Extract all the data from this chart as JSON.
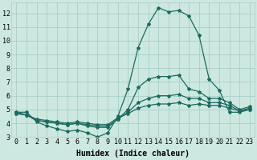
{
  "xlabel": "Humidex (Indice chaleur)",
  "x": [
    0,
    1,
    2,
    3,
    4,
    5,
    6,
    7,
    8,
    9,
    10,
    11,
    12,
    13,
    14,
    15,
    16,
    17,
    18,
    19,
    20,
    21,
    22,
    23
  ],
  "line1": [
    4.8,
    4.8,
    4.1,
    3.8,
    3.6,
    3.4,
    3.5,
    3.3,
    3.0,
    3.3,
    4.5,
    6.5,
    9.5,
    11.2,
    12.4,
    12.1,
    12.2,
    11.8,
    10.4,
    7.2,
    6.4,
    4.8,
    4.8,
    5.0
  ],
  "line2": [
    4.8,
    4.6,
    4.2,
    4.1,
    4.0,
    3.9,
    4.0,
    3.8,
    3.7,
    3.7,
    4.3,
    5.0,
    6.6,
    7.2,
    7.4,
    7.4,
    7.5,
    6.5,
    6.3,
    5.8,
    5.8,
    5.5,
    5.0,
    5.2
  ],
  "line3": [
    4.7,
    4.6,
    4.2,
    4.1,
    4.0,
    3.9,
    4.0,
    3.9,
    3.8,
    3.8,
    4.3,
    4.8,
    5.5,
    5.8,
    6.0,
    6.0,
    6.1,
    5.8,
    5.8,
    5.5,
    5.5,
    5.3,
    4.9,
    5.1
  ],
  "line4": [
    4.7,
    4.6,
    4.3,
    4.2,
    4.1,
    4.0,
    4.1,
    4.0,
    3.9,
    3.9,
    4.4,
    4.7,
    5.1,
    5.3,
    5.4,
    5.4,
    5.5,
    5.3,
    5.4,
    5.3,
    5.3,
    5.1,
    4.9,
    5.0
  ],
  "line_color": "#1a6b60",
  "bg_color": "#cce8e0",
  "grid_color": "#aacfc8",
  "ylim": [
    3,
    12.8
  ],
  "yticks": [
    3,
    4,
    5,
    6,
    7,
    8,
    9,
    10,
    11,
    12
  ],
  "xticks": [
    0,
    1,
    2,
    3,
    4,
    5,
    6,
    7,
    8,
    9,
    10,
    11,
    12,
    13,
    14,
    15,
    16,
    17,
    18,
    19,
    20,
    21,
    22,
    23
  ],
  "marker": "*",
  "markersize": 3,
  "linewidth": 0.9,
  "xlabel_fontsize": 7,
  "tick_fontsize": 6
}
